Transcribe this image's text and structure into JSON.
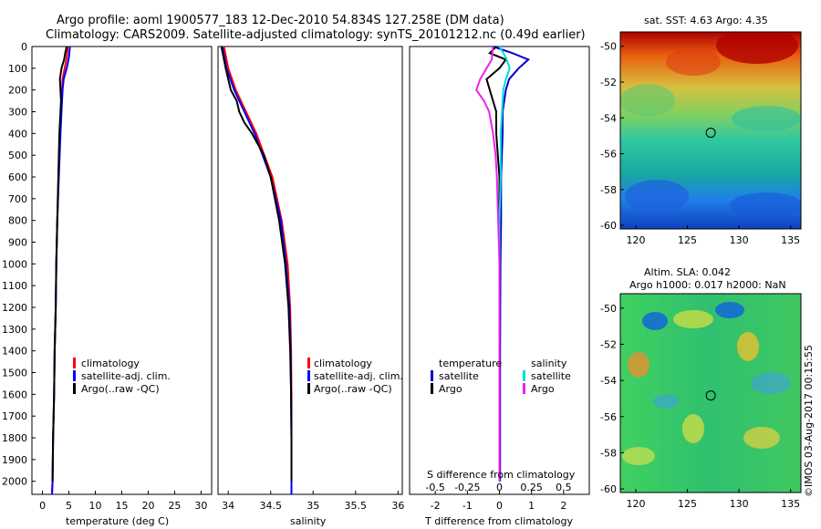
{
  "title_line1": "Argo profile: aoml 1900577_183 12-Dec-2010 54.834S 127.258E (DM data)",
  "title_line2": "Climatology: CARS2009. Satellite-adjusted climatology: synTS_20101212.nc (0.49d earlier)",
  "timestamp_label": "©IMOS 03-Aug-2017 00:15:55",
  "colors": {
    "climatology": "#ff0000",
    "satellite": "#0000ff",
    "argo": "#000000",
    "t_sat": "#0000cc",
    "s_sat": "#00dddd",
    "s_argo": "#ee22ee"
  },
  "depth_ticks": [
    "0",
    "100",
    "200",
    "300",
    "400",
    "500",
    "600",
    "700",
    "800",
    "900",
    "1000",
    "1100",
    "1200",
    "1300",
    "1400",
    "1500",
    "1600",
    "1700",
    "1800",
    "1900",
    "2000"
  ],
  "chart_data": [
    {
      "type": "line",
      "xlabel": "temperature (deg C)",
      "xticks": [
        "0",
        "5",
        "10",
        "15",
        "20",
        "25",
        "30"
      ],
      "xlim": [
        -2,
        32
      ],
      "ylim": [
        2060,
        0
      ],
      "legend": [
        "climatology",
        "satellite-adj. clim.",
        "Argo(..raw -QC)"
      ],
      "series": [
        {
          "name": "climatology",
          "depth": [
            0,
            50,
            100,
            150,
            200,
            300,
            400,
            600,
            800,
            1000,
            1200,
            1400,
            1600,
            1800,
            2000,
            2060
          ],
          "values": [
            4.8,
            4.6,
            4.2,
            3.8,
            3.7,
            3.5,
            3.3,
            3.0,
            2.8,
            2.6,
            2.5,
            2.3,
            2.2,
            2.0,
            1.9,
            1.8
          ]
        },
        {
          "name": "satellite-adj. clim.",
          "depth": [
            0,
            50,
            100,
            150,
            200,
            300,
            400,
            600,
            800,
            1000,
            1200,
            1400,
            1600,
            1800,
            2000,
            2060
          ],
          "values": [
            5.2,
            5.0,
            4.6,
            4.0,
            3.8,
            3.6,
            3.4,
            3.1,
            2.8,
            2.6,
            2.5,
            2.3,
            2.2,
            2.0,
            1.9,
            1.8
          ]
        },
        {
          "name": "Argo(..raw -QC)",
          "depth": [
            0,
            30,
            60,
            100,
            150,
            200,
            250,
            300,
            400,
            500,
            600,
            800,
            1000,
            1200,
            1400,
            1600,
            1800,
            2000
          ],
          "values": [
            4.6,
            4.3,
            4.1,
            3.6,
            3.3,
            3.4,
            3.5,
            3.4,
            3.2,
            3.1,
            3.0,
            2.8,
            2.6,
            2.5,
            2.3,
            2.2,
            2.0,
            1.9
          ]
        }
      ]
    },
    {
      "type": "line",
      "xlabel": "salinity",
      "xticks": [
        "34",
        "34.5",
        "35",
        "35.5",
        "36"
      ],
      "xlim": [
        33.88,
        36.05
      ],
      "ylim": [
        2060,
        0
      ],
      "legend": [
        "climatology",
        "satellite-adj. clim.",
        "Argo(..raw -QC)"
      ],
      "series": [
        {
          "name": "climatology",
          "depth": [
            0,
            100,
            200,
            300,
            400,
            600,
            800,
            1000,
            1200,
            1400,
            1600,
            1800,
            2000,
            2060
          ],
          "values": [
            33.95,
            34.0,
            34.09,
            34.21,
            34.33,
            34.52,
            34.63,
            34.7,
            34.73,
            34.74,
            34.745,
            34.745,
            34.745,
            34.745
          ]
        },
        {
          "name": "satellite-adj. clim.",
          "depth": [
            0,
            100,
            200,
            300,
            400,
            600,
            800,
            1000,
            1200,
            1400,
            1600,
            1800,
            2000,
            2060
          ],
          "values": [
            33.93,
            33.98,
            34.07,
            34.19,
            34.31,
            34.5,
            34.62,
            34.68,
            34.72,
            34.735,
            34.74,
            34.745,
            34.745,
            34.745
          ]
        },
        {
          "name": "Argo(..raw -QC)",
          "depth": [
            0,
            100,
            150,
            200,
            250,
            300,
            350,
            400,
            500,
            600,
            800,
            1000,
            1200,
            1400,
            1600,
            1800,
            2000
          ],
          "values": [
            33.92,
            33.97,
            34.0,
            34.03,
            34.1,
            34.13,
            34.19,
            34.28,
            34.42,
            34.5,
            34.6,
            34.67,
            34.71,
            34.73,
            34.74,
            34.745,
            34.745
          ]
        }
      ]
    },
    {
      "type": "line",
      "xlabel": "T difference from climatology",
      "x2label": "S difference from climatology",
      "xticks": [
        "-2",
        "-1",
        "0",
        "1",
        "2"
      ],
      "x2ticks": [
        "-0.5",
        "-0.25",
        "0",
        "0.25",
        "0.5"
      ],
      "xlim": [
        -2.8,
        2.8
      ],
      "ylim": [
        2060,
        0
      ],
      "legend_headers": [
        "temperature",
        "salinity"
      ],
      "legend": [
        "satellite",
        "Argo",
        "satellite",
        "Argo"
      ],
      "series": [
        {
          "name": "temperature satellite",
          "depth": [
            0,
            30,
            60,
            100,
            150,
            200,
            300,
            400,
            600,
            800,
            1000,
            1400,
            1800,
            2000
          ],
          "values": [
            -0.2,
            0.4,
            0.9,
            0.6,
            0.3,
            0.2,
            0.1,
            0.1,
            0.05,
            0.05,
            0.03,
            0.02,
            0.02,
            0.02
          ]
        },
        {
          "name": "temperature Argo",
          "depth": [
            0,
            30,
            60,
            100,
            150,
            200,
            300,
            400,
            600,
            800,
            1000,
            1400,
            1800,
            2000
          ],
          "values": [
            -0.1,
            -0.3,
            0.2,
            0.0,
            -0.4,
            -0.3,
            -0.1,
            -0.1,
            0.0,
            0.0,
            0.0,
            0.0,
            0.0,
            0.0
          ]
        },
        {
          "name": "salinity satellite",
          "depth": [
            0,
            50,
            100,
            150,
            200,
            300,
            400,
            600,
            800,
            1000,
            1400,
            1800,
            2000
          ],
          "values": [
            0.0,
            0.05,
            0.08,
            0.05,
            0.03,
            0.02,
            0.01,
            0.01,
            0.0,
            0.0,
            0.0,
            0.0,
            0.0
          ]
        },
        {
          "name": "salinity Argo",
          "depth": [
            0,
            60,
            100,
            150,
            200,
            250,
            300,
            400,
            500,
            600,
            800,
            1000,
            1400,
            1800,
            2000
          ],
          "values": [
            -0.05,
            -0.06,
            -0.1,
            -0.15,
            -0.18,
            -0.12,
            -0.08,
            -0.05,
            -0.03,
            -0.02,
            -0.01,
            0.0,
            0.0,
            0.0,
            0.0
          ]
        }
      ]
    },
    {
      "type": "heatmap",
      "title": "sat. SST: 4.63 Argo: 4.35",
      "xticks": [
        "120",
        "125",
        "130",
        "135"
      ],
      "yticks": [
        "-50",
        "-52",
        "-54",
        "-56",
        "-58",
        "-60"
      ],
      "xlim": [
        118.5,
        136
      ],
      "ylim": [
        -60.2,
        -49.2
      ],
      "marker": {
        "lon": 127.26,
        "lat": -54.83
      }
    },
    {
      "type": "heatmap",
      "title": "Altim. SLA: 0.042",
      "subtitle": "Argo h1000: 0.017 h2000: NaN",
      "xticks": [
        "120",
        "125",
        "130",
        "135"
      ],
      "yticks": [
        "-50",
        "-52",
        "-54",
        "-56",
        "-58",
        "-60"
      ],
      "xlim": [
        118.5,
        136
      ],
      "ylim": [
        -60.2,
        -49.2
      ],
      "marker": {
        "lon": 127.26,
        "lat": -54.83
      }
    }
  ]
}
